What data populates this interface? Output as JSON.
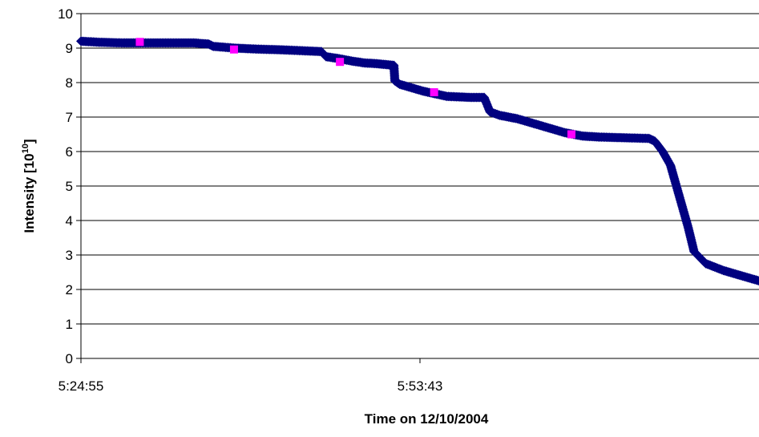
{
  "chart_data": {
    "type": "scatter",
    "title": "",
    "xlabel": "Time on 12/10/2004",
    "ylabel": "Intensity [10",
    "ylabel_sup": "10",
    "ylabel_suffix": "]",
    "ylim": [
      0,
      10
    ],
    "yticks": [
      "0",
      "1",
      "2",
      "3",
      "4",
      "5",
      "6",
      "7",
      "8",
      "9",
      "10"
    ],
    "xlim": [
      "5:24:55",
      "6:22:31"
    ],
    "xtick_labels": [
      "5:24:55",
      "5:53:43"
    ],
    "grid": "horizontal",
    "colors": {
      "main": "#000080",
      "highlight": "#ff00ff"
    },
    "series": [
      {
        "marker": "diamond",
        "color": "#000080",
        "points": [
          [
            "5:24:55",
            9.2
          ],
          [
            "5:26:30",
            9.17
          ],
          [
            "5:28:30",
            9.15
          ],
          [
            "5:30:00",
            9.15
          ],
          [
            "5:32:30",
            9.15
          ],
          [
            "5:34:30",
            9.15
          ],
          [
            "5:35:45",
            9.12
          ],
          [
            "5:36:10",
            9.05
          ],
          [
            "5:38:00",
            9.0
          ],
          [
            "5:40:00",
            8.97
          ],
          [
            "5:42:00",
            8.95
          ],
          [
            "5:44:00",
            8.92
          ],
          [
            "5:45:20",
            8.9
          ],
          [
            "5:45:45",
            8.75
          ],
          [
            "5:46:45",
            8.7
          ],
          [
            "5:48:00",
            8.62
          ],
          [
            "5:49:00",
            8.57
          ],
          [
            "5:50:00",
            8.55
          ],
          [
            "5:51:30",
            8.5
          ],
          [
            "5:51:35",
            8.05
          ],
          [
            "5:52:00",
            7.95
          ],
          [
            "5:54:00",
            7.75
          ],
          [
            "5:56:00",
            7.6
          ],
          [
            "5:58:00",
            7.57
          ],
          [
            "5:59:10",
            7.57
          ],
          [
            "5:59:40",
            7.15
          ],
          [
            "6:00:30",
            7.05
          ],
          [
            "6:02:00",
            6.95
          ],
          [
            "6:04:00",
            6.75
          ],
          [
            "6:06:00",
            6.55
          ],
          [
            "6:07:30",
            6.45
          ],
          [
            "6:09:00",
            6.42
          ],
          [
            "6:11:00",
            6.4
          ],
          [
            "6:13:10",
            6.38
          ],
          [
            "6:13:40",
            6.3
          ],
          [
            "6:14:20",
            6.0
          ],
          [
            "6:15:00",
            5.6
          ],
          [
            "6:15:30",
            5.0
          ],
          [
            "6:16:00",
            4.4
          ],
          [
            "6:16:30",
            3.8
          ],
          [
            "6:17:00",
            3.1
          ],
          [
            "6:18:00",
            2.75
          ],
          [
            "6:19:30",
            2.55
          ],
          [
            "6:21:00",
            2.4
          ],
          [
            "6:22:31",
            2.25
          ]
        ]
      },
      {
        "marker": "square",
        "color": "#ff00ff",
        "points": [
          [
            "5:29:55",
            9.18
          ],
          [
            "5:37:55",
            8.96
          ],
          [
            "5:46:55",
            8.6
          ],
          [
            "5:54:55",
            7.72
          ],
          [
            "6:06:35",
            6.5
          ]
        ]
      }
    ]
  }
}
